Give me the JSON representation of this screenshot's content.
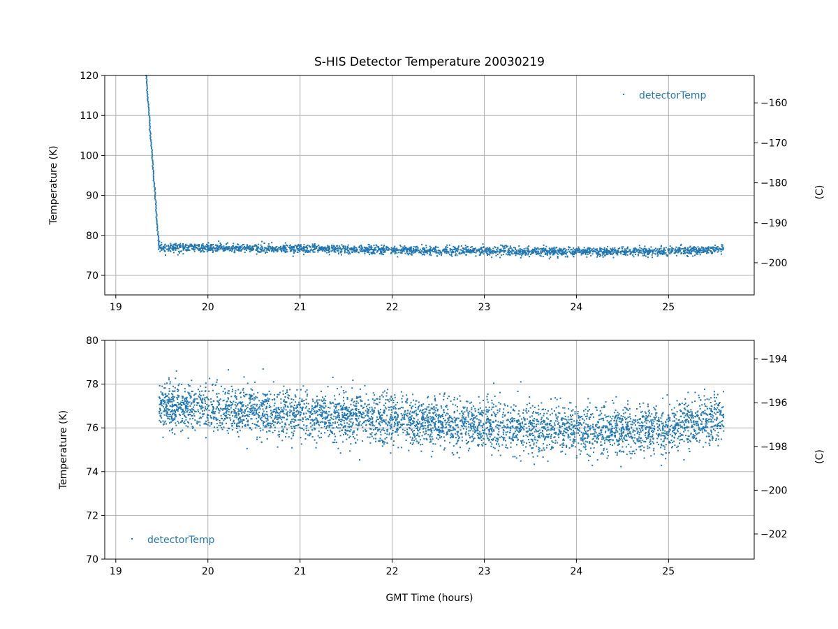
{
  "colors": {
    "series": "#1f77b4",
    "grid": "#b0b0b0"
  },
  "chart_data": [
    {
      "type": "scatter",
      "title": "S-HIS Detector Temperature 20030219",
      "xlabel": "",
      "ylabel": "Temperature (K)",
      "ylabel_right": "(C)",
      "xlim": [
        18.88,
        25.93
      ],
      "ylim": [
        65.1,
        120
      ],
      "xticks": [
        "19",
        "20",
        "21",
        "22",
        "23",
        "24",
        "25"
      ],
      "yticks": [
        "70",
        "80",
        "90",
        "100",
        "110",
        "120"
      ],
      "yticks_right": [
        "−160",
        "−170",
        "−180",
        "−190",
        "−200"
      ],
      "grid": true,
      "legend": {
        "label": "detectorTemp",
        "placement": "top-right"
      },
      "series": [
        {
          "name": "detectorTemp",
          "cooldown": [
            [
              19.33,
              120
            ],
            [
              19.47,
              76.5
            ]
          ],
          "trend": [
            [
              19.47,
              77.0
            ],
            [
              20,
              76.9
            ],
            [
              21,
              76.6
            ],
            [
              22,
              76.3
            ],
            [
              23,
              76.1
            ],
            [
              24,
              75.9
            ],
            [
              24.5,
              75.9
            ],
            [
              25,
              76.0
            ],
            [
              25.6,
              76.5
            ]
          ],
          "noise_std": 0.55
        }
      ]
    },
    {
      "type": "scatter",
      "title": "",
      "xlabel": "GMT Time (hours)",
      "ylabel": "Temperature (K)",
      "ylabel_right": "(C)",
      "xlim": [
        18.88,
        25.93
      ],
      "ylim": [
        70,
        80
      ],
      "xticks": [
        "19",
        "20",
        "21",
        "22",
        "23",
        "24",
        "25"
      ],
      "yticks": [
        "70",
        "72",
        "74",
        "76",
        "78",
        "80"
      ],
      "yticks_right": [
        "−194",
        "−196",
        "−198",
        "−200",
        "−202"
      ],
      "grid": true,
      "legend": {
        "label": "detectorTemp",
        "placement": "bottom-left"
      },
      "series": [
        {
          "name": "detectorTemp",
          "trend": [
            [
              19.47,
              77.0
            ],
            [
              20,
              76.9
            ],
            [
              21,
              76.6
            ],
            [
              22,
              76.3
            ],
            [
              23,
              76.1
            ],
            [
              24,
              75.9
            ],
            [
              24.5,
              75.9
            ],
            [
              25,
              76.0
            ],
            [
              25.6,
              76.5
            ]
          ],
          "noise_std": 0.55
        }
      ]
    }
  ]
}
